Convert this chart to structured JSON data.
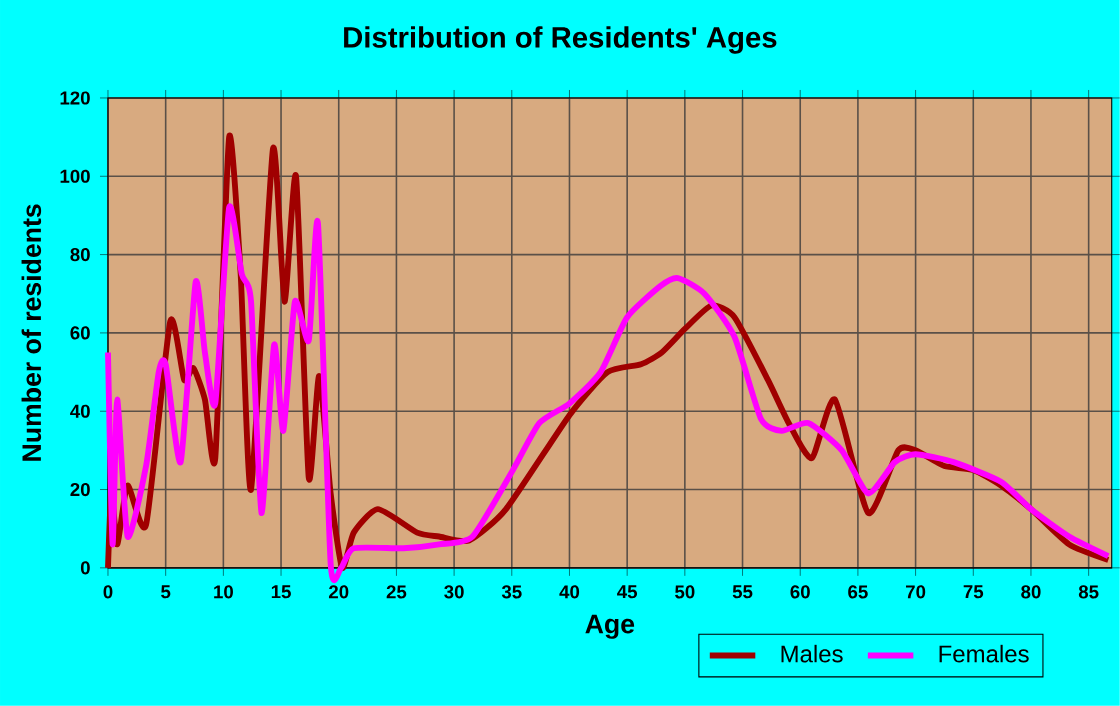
{
  "chart_data": {
    "type": "line",
    "title": "Distribution of Residents' Ages",
    "xlabel": "Age",
    "ylabel": "Number of residents",
    "xlim": [
      0,
      87
    ],
    "ylim": [
      0,
      120
    ],
    "xticks": [
      0,
      5,
      10,
      15,
      20,
      25,
      30,
      35,
      40,
      45,
      50,
      55,
      60,
      65,
      70,
      75,
      80,
      85
    ],
    "yticks": [
      0,
      20,
      40,
      60,
      80,
      100,
      120
    ],
    "grid": true,
    "legend": "bottom right",
    "series": [
      {
        "name": "Males",
        "color": "#a00000",
        "x": [
          0,
          0.3,
          0.8,
          1.7,
          3.3,
          5.4,
          6.6,
          7.4,
          8.4,
          9.3,
          10.5,
          11.5,
          12.4,
          14.3,
          15.3,
          16.3,
          17.4,
          18.3,
          19.3,
          20.3,
          21.3,
          23.4,
          26.8,
          28.7,
          31.3,
          34.5,
          40,
          43.3,
          46.2,
          48,
          50,
          52.3,
          54.3,
          57.2,
          59,
          61,
          63,
          65.9,
          68.5,
          70,
          72.5,
          75,
          77.4,
          80,
          83.3,
          86.7
        ],
        "values": [
          0,
          20,
          6,
          21,
          11,
          63,
          48,
          51,
          43,
          28,
          110,
          75,
          20,
          107,
          68,
          100,
          23,
          49,
          19,
          0,
          9,
          15,
          9,
          8,
          7,
          15,
          39,
          50,
          52,
          55,
          61,
          67,
          64,
          48,
          37,
          28,
          43,
          14,
          30,
          30,
          26,
          25,
          21,
          15,
          6,
          2
        ]
      },
      {
        "name": "Females",
        "color": "#ff00ff",
        "x": [
          0,
          0.4,
          0.8,
          1.7,
          3.3,
          4.4,
          5,
          6.3,
          7.6,
          8.4,
          9.3,
          10.5,
          11.6,
          12.4,
          13.3,
          14.4,
          15.2,
          16.2,
          17.4,
          18.2,
          19.3,
          20.2,
          21.3,
          25.6,
          28.7,
          31.6,
          35.1,
          37.4,
          40,
          42.7,
          45,
          47.9,
          49.4,
          51.7,
          54.3,
          56.6,
          58.4,
          60.7,
          63.6,
          65.9,
          68.2,
          70,
          73.3,
          77.4,
          80,
          83.3,
          86.7
        ],
        "values": [
          55,
          6,
          43,
          8,
          26,
          50,
          52,
          27,
          73,
          55,
          42,
          92,
          75,
          68,
          14,
          57,
          35,
          68,
          58,
          88,
          1,
          0,
          5,
          5,
          6,
          8,
          25,
          37,
          42,
          50,
          64,
          72,
          74,
          70,
          59,
          38,
          35,
          37,
          30,
          19,
          27,
          29,
          27,
          22,
          15,
          8,
          3
        ]
      }
    ]
  }
}
